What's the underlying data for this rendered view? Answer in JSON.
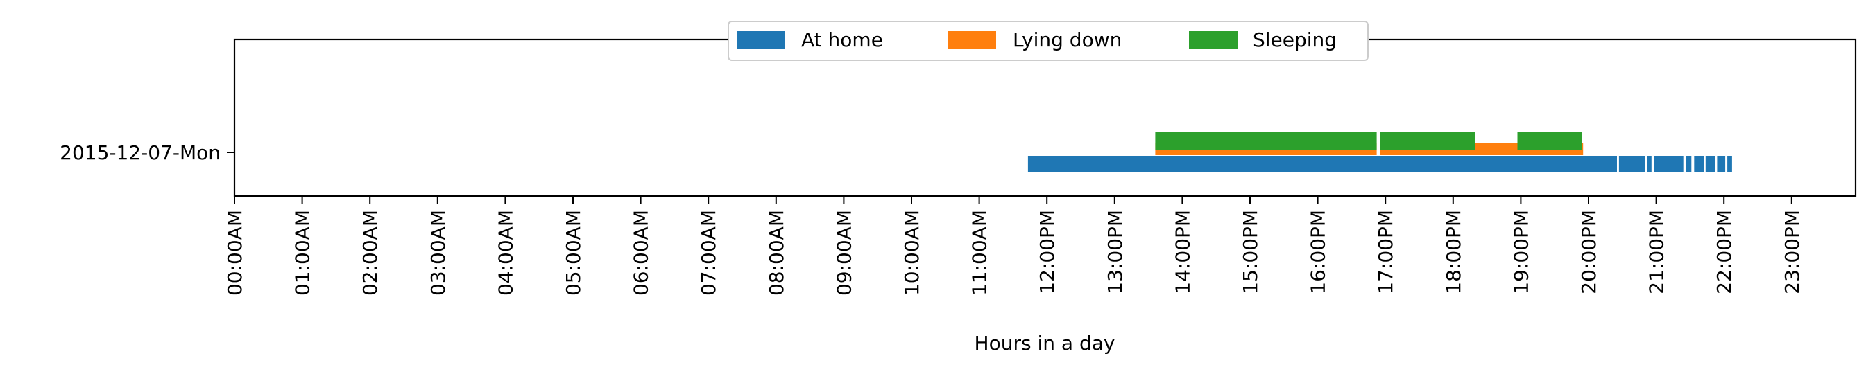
{
  "chart_data": {
    "type": "timeline",
    "title": "",
    "xlabel": "Hours in a day",
    "ylabel": "",
    "xlim": [
      0,
      24
    ],
    "x_tick_labels": [
      "00:00AM",
      "01:00AM",
      "02:00AM",
      "03:00AM",
      "04:00AM",
      "05:00AM",
      "06:00AM",
      "07:00AM",
      "08:00AM",
      "09:00AM",
      "10:00AM",
      "11:00AM",
      "12:00PM",
      "13:00PM",
      "14:00PM",
      "15:00PM",
      "16:00PM",
      "17:00PM",
      "18:00PM",
      "19:00PM",
      "20:00PM",
      "21:00PM",
      "22:00PM",
      "23:00PM"
    ],
    "categories": [
      "2015-12-07-Mon"
    ],
    "legend_position": "top-center",
    "grid": false,
    "series": [
      {
        "name": "At home",
        "color": "#1f77b4",
        "intervals": [
          [
            11.72,
            20.42
          ],
          [
            20.45,
            20.83
          ],
          [
            20.87,
            20.93
          ],
          [
            20.97,
            21.4
          ],
          [
            21.44,
            21.52
          ],
          [
            21.56,
            21.7
          ],
          [
            21.73,
            21.87
          ],
          [
            21.9,
            22.02
          ],
          [
            22.05,
            22.12
          ]
        ]
      },
      {
        "name": "Lying down",
        "color": "#ff7f0e",
        "intervals": [
          [
            13.6,
            16.87
          ],
          [
            16.92,
            19.92
          ]
        ]
      },
      {
        "name": "Sleeping",
        "color": "#2ca02c",
        "intervals": [
          [
            13.6,
            16.87
          ],
          [
            16.92,
            18.33
          ],
          [
            18.95,
            19.9
          ]
        ]
      }
    ]
  }
}
